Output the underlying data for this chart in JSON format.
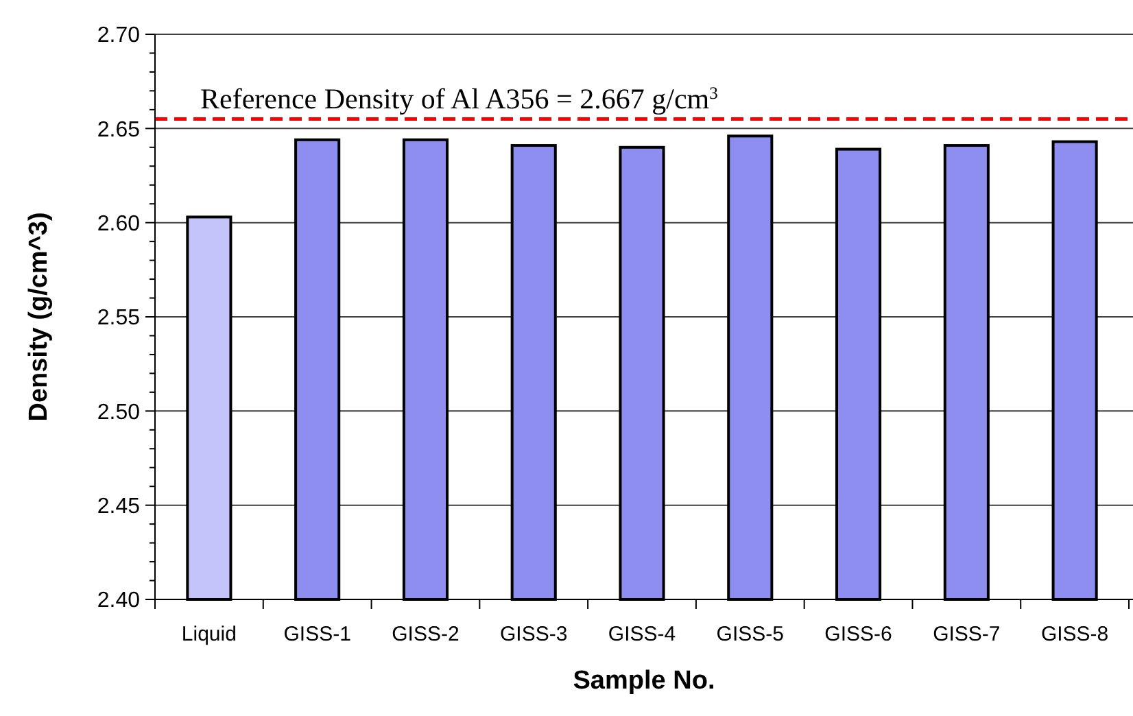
{
  "chart_data": {
    "type": "bar",
    "xlabel": "Sample No.",
    "ylabel": "Density (g/cm^3)",
    "categories": [
      "Liquid",
      "GISS-1",
      "GISS-2",
      "GISS-3",
      "GISS-4",
      "GISS-5",
      "GISS-6",
      "GISS-7",
      "GISS-8"
    ],
    "values": [
      2.603,
      2.644,
      2.644,
      2.641,
      2.64,
      2.646,
      2.639,
      2.641,
      2.643
    ],
    "colors": [
      "#c4c4fa",
      "#8e8ef0",
      "#8e8ef0",
      "#8e8ef0",
      "#8e8ef0",
      "#8e8ef0",
      "#8e8ef0",
      "#8e8ef0",
      "#8e8ef0"
    ],
    "ylim": [
      2.4,
      2.7
    ],
    "yticks": [
      "2.40",
      {
        "value": 2.41,
        "label": null
      },
      {
        "value": 2.42,
        "label": null
      },
      {
        "value": 2.43,
        "label": null
      },
      {
        "value": 2.44,
        "label": null
      },
      {
        "value": 2.45,
        "label": "2.45"
      },
      {
        "value": 2.46,
        "label": null
      },
      {
        "value": 2.47,
        "label": null
      },
      {
        "value": 2.48,
        "label": null
      },
      {
        "value": 2.49,
        "label": null
      },
      {
        "value": 2.5,
        "label": "2.50"
      },
      {
        "value": 2.51,
        "label": null
      },
      {
        "value": 2.52,
        "label": null
      },
      {
        "value": 2.53,
        "label": null
      },
      {
        "value": 2.54,
        "label": null
      },
      {
        "value": 2.55,
        "label": "2.55"
      },
      {
        "value": 2.56,
        "label": null
      },
      {
        "value": 2.57,
        "label": null
      },
      {
        "value": 2.58,
        "label": null
      },
      {
        "value": 2.59,
        "label": null
      },
      {
        "value": 2.6,
        "label": "2.60"
      },
      {
        "value": 2.61,
        "label": null
      },
      {
        "value": 2.62,
        "label": null
      },
      {
        "value": 2.63,
        "label": null
      },
      {
        "value": 2.64,
        "label": null
      },
      {
        "value": 2.65,
        "label": "2.65"
      },
      {
        "value": 2.66,
        "label": null
      },
      {
        "value": 2.67,
        "label": null
      },
      {
        "value": 2.68,
        "label": null
      },
      {
        "value": 2.69,
        "label": null
      },
      {
        "value": 2.7,
        "label": "2.70"
      }
    ],
    "grid": "y",
    "ref_lines": [
      {
        "axis": "y",
        "value": 2.655,
        "label": "Reference Density of Al A356 = 2.667 g/cm$^{3}$",
        "color": "#ff0000",
        "line_style": "dashed"
      }
    ]
  }
}
